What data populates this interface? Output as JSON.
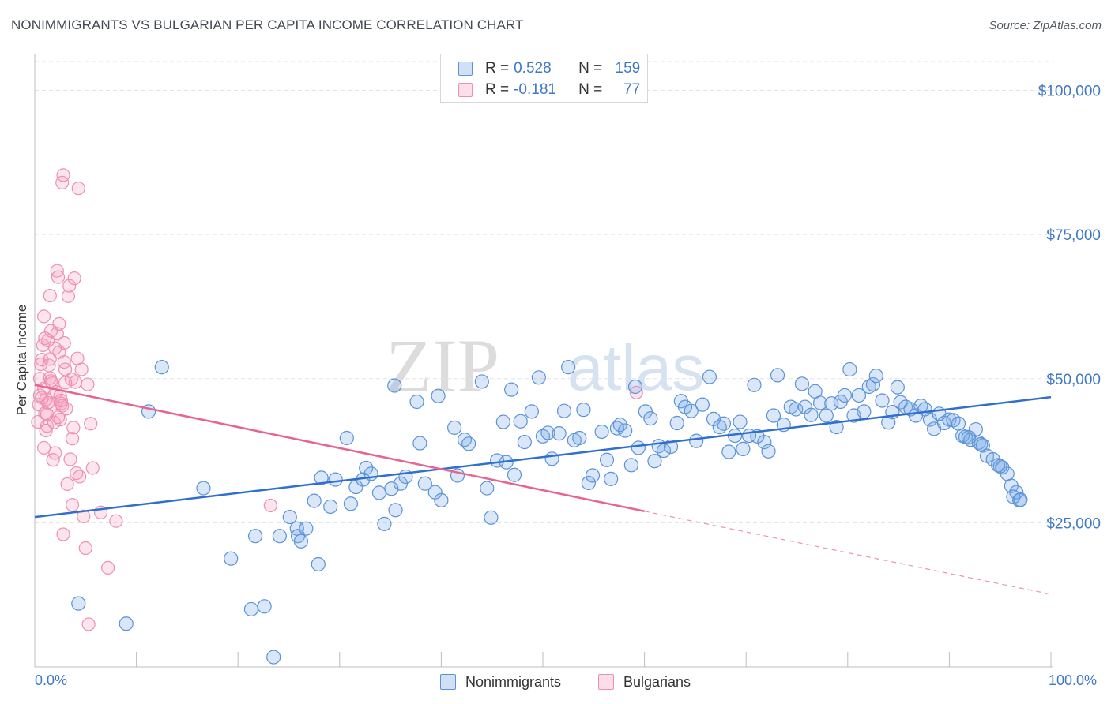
{
  "title": "NONIMMIGRANTS VS BULGARIAN PER CAPITA INCOME CORRELATION CHART",
  "source": "Source: ZipAtlas.com",
  "watermark": {
    "zip": "ZIP",
    "atlas": "atlas"
  },
  "colors": {
    "blue": "#3f79c6",
    "blue_fill": "rgba(120,168,230,0.28)",
    "blue_stroke": "#5b92d8",
    "blue_line": "#2f6fd0",
    "pink_fill": "rgba(244,160,190,0.28)",
    "pink_stroke": "#ee8fb0",
    "pink_line": "#e8648f",
    "grid": "#e2e2e2"
  },
  "legend": {
    "rows": [
      {
        "r_label": "R = ",
        "r_value": "0.528",
        "n_label": "N = ",
        "n_value": "159"
      },
      {
        "r_label": "R = ",
        "r_value": "-0.181",
        "n_label": "N = ",
        "n_value": "77"
      }
    ]
  },
  "bottom_legend": {
    "series1": "Nonimmigrants",
    "series2": "Bulgarians"
  },
  "chart_data": {
    "type": "scatter",
    "title": "NONIMMIGRANTS VS BULGARIAN PER CAPITA INCOME CORRELATION CHART",
    "xlabel": "",
    "ylabel": "Per Capita Income",
    "xlim": [
      0,
      100
    ],
    "ylim": [
      0,
      105000
    ],
    "x_tick_labels": [
      "0.0%",
      "100.0%"
    ],
    "y_ticks": [
      25000,
      50000,
      75000,
      100000
    ],
    "y_tick_labels": [
      "$25,000",
      "$50,000",
      "$75,000",
      "$100,000"
    ],
    "grid": true,
    "series": [
      {
        "name": "Nonimmigrants",
        "r": 0.528,
        "n": 159,
        "trend": {
          "x": [
            0,
            100
          ],
          "y": [
            26000,
            46800
          ]
        },
        "points": [
          [
            4.3,
            11000
          ],
          [
            9.0,
            7500
          ],
          [
            11.2,
            44300
          ],
          [
            12.5,
            52000
          ],
          [
            16.6,
            31000
          ],
          [
            19.3,
            18800
          ],
          [
            21.3,
            10000
          ],
          [
            22.6,
            10500
          ],
          [
            21.7,
            22700
          ],
          [
            23.5,
            1700
          ],
          [
            24.1,
            22700
          ],
          [
            25.1,
            26000
          ],
          [
            25.8,
            24000
          ],
          [
            25.9,
            22700
          ],
          [
            26.2,
            21800
          ],
          [
            26.7,
            24000
          ],
          [
            27.5,
            28800
          ],
          [
            27.9,
            17800
          ],
          [
            28.2,
            32800
          ],
          [
            29.1,
            27800
          ],
          [
            29.6,
            32500
          ],
          [
            30.7,
            39700
          ],
          [
            31.1,
            28300
          ],
          [
            31.6,
            31200
          ],
          [
            32.3,
            32500
          ],
          [
            32.6,
            34500
          ],
          [
            33.1,
            33500
          ],
          [
            33.9,
            30200
          ],
          [
            35.1,
            30900
          ],
          [
            35.4,
            48800
          ],
          [
            35.5,
            27200
          ],
          [
            34.4,
            24800
          ],
          [
            36.0,
            31800
          ],
          [
            36.5,
            33000
          ],
          [
            37.6,
            46000
          ],
          [
            37.9,
            38800
          ],
          [
            38.4,
            31800
          ],
          [
            39.4,
            30300
          ],
          [
            39.7,
            47000
          ],
          [
            40.0,
            28900
          ],
          [
            41.3,
            41500
          ],
          [
            41.6,
            33200
          ],
          [
            42.3,
            39400
          ],
          [
            42.7,
            38700
          ],
          [
            44.0,
            49500
          ],
          [
            44.5,
            31000
          ],
          [
            44.9,
            25900
          ],
          [
            45.5,
            35800
          ],
          [
            46.1,
            42500
          ],
          [
            46.4,
            35500
          ],
          [
            46.9,
            48100
          ],
          [
            47.2,
            33300
          ],
          [
            47.8,
            42600
          ],
          [
            48.2,
            39000
          ],
          [
            48.9,
            44300
          ],
          [
            49.6,
            50200
          ],
          [
            50.0,
            40000
          ],
          [
            50.5,
            40600
          ],
          [
            50.9,
            36100
          ],
          [
            51.6,
            40500
          ],
          [
            52.1,
            44400
          ],
          [
            52.5,
            52000
          ],
          [
            53.1,
            39300
          ],
          [
            53.6,
            39700
          ],
          [
            54.0,
            44600
          ],
          [
            54.5,
            31900
          ],
          [
            54.9,
            33200
          ],
          [
            55.8,
            40800
          ],
          [
            56.3,
            35900
          ],
          [
            56.7,
            32600
          ],
          [
            57.3,
            41400
          ],
          [
            57.6,
            42000
          ],
          [
            58.1,
            41000
          ],
          [
            58.7,
            35000
          ],
          [
            59.1,
            48600
          ],
          [
            59.4,
            38000
          ],
          [
            60.1,
            44300
          ],
          [
            60.6,
            43100
          ],
          [
            61.0,
            35700
          ],
          [
            61.4,
            38300
          ],
          [
            61.9,
            37500
          ],
          [
            62.6,
            38200
          ],
          [
            63.2,
            42300
          ],
          [
            63.6,
            46100
          ],
          [
            64.0,
            45100
          ],
          [
            64.6,
            44400
          ],
          [
            65.1,
            39200
          ],
          [
            65.7,
            45500
          ],
          [
            66.4,
            50300
          ],
          [
            66.8,
            43000
          ],
          [
            67.4,
            41600
          ],
          [
            67.8,
            42200
          ],
          [
            68.3,
            37300
          ],
          [
            68.9,
            40100
          ],
          [
            69.4,
            42500
          ],
          [
            69.7,
            37800
          ],
          [
            70.3,
            40100
          ],
          [
            70.8,
            48900
          ],
          [
            71.1,
            40000
          ],
          [
            71.8,
            39000
          ],
          [
            72.2,
            37400
          ],
          [
            72.7,
            43600
          ],
          [
            73.1,
            50600
          ],
          [
            73.7,
            42000
          ],
          [
            74.4,
            45100
          ],
          [
            74.9,
            44700
          ],
          [
            75.5,
            49100
          ],
          [
            75.8,
            45100
          ],
          [
            76.4,
            43700
          ],
          [
            76.8,
            47800
          ],
          [
            77.3,
            45800
          ],
          [
            77.9,
            43600
          ],
          [
            78.4,
            45700
          ],
          [
            78.9,
            41600
          ],
          [
            79.3,
            46000
          ],
          [
            79.7,
            47100
          ],
          [
            80.2,
            51600
          ],
          [
            80.6,
            43600
          ],
          [
            81.1,
            47100
          ],
          [
            81.6,
            44300
          ],
          [
            82.1,
            48600
          ],
          [
            82.5,
            49000
          ],
          [
            82.8,
            50500
          ],
          [
            83.4,
            46200
          ],
          [
            84.0,
            42400
          ],
          [
            84.4,
            44200
          ],
          [
            84.9,
            48500
          ],
          [
            85.2,
            45900
          ],
          [
            85.7,
            45100
          ],
          [
            86.2,
            44700
          ],
          [
            86.7,
            43600
          ],
          [
            87.2,
            45300
          ],
          [
            87.6,
            44700
          ],
          [
            88.1,
            42900
          ],
          [
            88.5,
            41300
          ],
          [
            89.0,
            43900
          ],
          [
            89.5,
            42300
          ],
          [
            90.0,
            42900
          ],
          [
            90.4,
            42800
          ],
          [
            90.9,
            42200
          ],
          [
            91.3,
            40100
          ],
          [
            91.6,
            39900
          ],
          [
            92.1,
            39400
          ],
          [
            92.6,
            41200
          ],
          [
            92.9,
            38900
          ],
          [
            93.3,
            38400
          ],
          [
            93.7,
            36600
          ],
          [
            94.3,
            36000
          ],
          [
            94.8,
            35000
          ],
          [
            95.2,
            34600
          ],
          [
            95.7,
            33500
          ],
          [
            96.1,
            31400
          ],
          [
            96.6,
            30300
          ],
          [
            96.9,
            28900
          ],
          [
            96.3,
            29500
          ],
          [
            97.0,
            29000
          ],
          [
            95.0,
            34800
          ],
          [
            93.1,
            38600
          ],
          [
            91.9,
            39800
          ]
        ]
      },
      {
        "name": "Bulgarians",
        "r": -0.181,
        "n": 77,
        "trend": {
          "x": [
            0,
            60
          ],
          "y": [
            48900,
            27000
          ]
        },
        "trend_dashed": {
          "x": [
            60,
            100
          ],
          "y": [
            27000,
            12600
          ]
        },
        "points": [
          [
            0.3,
            42500
          ],
          [
            0.4,
            45500
          ],
          [
            0.5,
            50000
          ],
          [
            0.6,
            52500
          ],
          [
            0.7,
            53300
          ],
          [
            0.8,
            55800
          ],
          [
            0.9,
            48300
          ],
          [
            0.9,
            60800
          ],
          [
            1.0,
            57000
          ],
          [
            1.0,
            44000
          ],
          [
            1.1,
            46400
          ],
          [
            1.2,
            41800
          ],
          [
            1.3,
            56600
          ],
          [
            1.4,
            52300
          ],
          [
            1.5,
            64400
          ],
          [
            1.5,
            50100
          ],
          [
            1.6,
            58300
          ],
          [
            1.7,
            49200
          ],
          [
            1.8,
            45600
          ],
          [
            1.9,
            42400
          ],
          [
            2.0,
            37100
          ],
          [
            2.0,
            55300
          ],
          [
            2.1,
            47700
          ],
          [
            2.2,
            57800
          ],
          [
            2.2,
            68700
          ],
          [
            2.3,
            67600
          ],
          [
            2.4,
            54600
          ],
          [
            2.5,
            47000
          ],
          [
            2.5,
            42900
          ],
          [
            2.6,
            45700
          ],
          [
            2.7,
            84000
          ],
          [
            2.7,
            45300
          ],
          [
            2.8,
            85300
          ],
          [
            2.9,
            52900
          ],
          [
            2.9,
            56200
          ],
          [
            3.0,
            51600
          ],
          [
            3.1,
            44800
          ],
          [
            3.2,
            31700
          ],
          [
            3.3,
            64300
          ],
          [
            3.4,
            66100
          ],
          [
            3.5,
            36000
          ],
          [
            3.6,
            49900
          ],
          [
            3.7,
            39600
          ],
          [
            3.7,
            28100
          ],
          [
            3.8,
            41500
          ],
          [
            3.9,
            67400
          ],
          [
            4.0,
            49400
          ],
          [
            4.1,
            33600
          ],
          [
            4.2,
            53500
          ],
          [
            4.3,
            83000
          ],
          [
            4.4,
            33000
          ],
          [
            4.6,
            51600
          ],
          [
            4.8,
            26100
          ],
          [
            5.0,
            20600
          ],
          [
            5.2,
            49000
          ],
          [
            5.3,
            7400
          ],
          [
            5.5,
            42200
          ],
          [
            5.7,
            34500
          ],
          [
            6.5,
            26800
          ],
          [
            7.2,
            17200
          ],
          [
            8.0,
            25300
          ],
          [
            1.3,
            45800
          ],
          [
            2.6,
            46200
          ],
          [
            1.8,
            35900
          ],
          [
            0.7,
            46700
          ],
          [
            1.2,
            43800
          ],
          [
            2.3,
            43300
          ],
          [
            1.5,
            53400
          ],
          [
            3.0,
            49300
          ],
          [
            0.9,
            38000
          ],
          [
            1.6,
            49600
          ],
          [
            2.4,
            59500
          ],
          [
            2.8,
            23000
          ],
          [
            0.5,
            47100
          ],
          [
            23.2,
            28000
          ],
          [
            59.2,
            47600
          ],
          [
            1.1,
            41000
          ]
        ]
      }
    ]
  }
}
